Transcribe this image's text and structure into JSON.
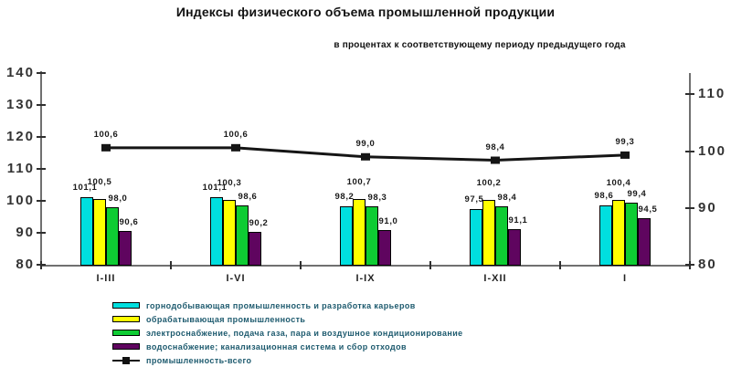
{
  "title": "Индексы физического объема промышленной продукции",
  "subtitle": "в процентах к соответствующему периоду предыдущего года",
  "chart_data": {
    "type": "bar+line",
    "categories": [
      "I-III",
      "I-VI",
      "I-IX",
      "I-XII",
      "I"
    ],
    "series": [
      {
        "name": "горнодобывающая промышленность и разработка карьеров",
        "type": "bar",
        "color": "#00dfdf",
        "values": [
          101.1,
          101.1,
          98.2,
          97.5,
          98.6
        ]
      },
      {
        "name": "обрабатывающая промышленность",
        "type": "bar",
        "color": "#ffff00",
        "values": [
          100.5,
          100.3,
          100.7,
          100.2,
          100.4
        ]
      },
      {
        "name": "электроснабжение, подача газа, пара и воздушное кондиционирование",
        "type": "bar",
        "color": "#0ecc33",
        "values": [
          98.0,
          98.6,
          98.3,
          98.4,
          99.4
        ]
      },
      {
        "name": "водоснабжение; канализационная система и сбор отходов",
        "type": "bar",
        "color": "#5f055f",
        "values": [
          90.6,
          90.2,
          91.0,
          91.1,
          94.5
        ]
      },
      {
        "name": "промышленность-всего",
        "type": "line",
        "color": "#151515",
        "values": [
          100.6,
          100.6,
          99.0,
          98.4,
          99.3
        ]
      }
    ],
    "left_axis": {
      "min": 80,
      "max": 140,
      "ticks": [
        140,
        130,
        120,
        110,
        100,
        90,
        80
      ]
    },
    "right_axis": {
      "min": 80,
      "max": 113.75,
      "ticks": [
        110,
        100,
        90,
        80
      ]
    },
    "grid": false,
    "legend_position": "bottom",
    "decimal_separator": ","
  }
}
